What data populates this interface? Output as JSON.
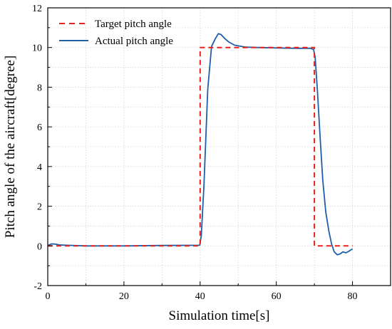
{
  "chart_data": {
    "type": "line",
    "title": "",
    "xlabel": "Simulation time[s]",
    "ylabel": "Pitch angle of the aircraft[degree]",
    "xlim": [
      0,
      90
    ],
    "ylim": [
      -2,
      12
    ],
    "xticks": [
      0,
      20,
      40,
      60,
      80
    ],
    "yticks": [
      -2,
      0,
      2,
      4,
      6,
      8,
      10,
      12
    ],
    "grid": true,
    "legend_position": "top-left",
    "series": [
      {
        "name": "Target pitch angle",
        "color": "#e8211c",
        "style": "dashed",
        "x": [
          0,
          40,
          40,
          70,
          70,
          80
        ],
        "y": [
          0,
          0,
          10,
          10,
          0,
          0
        ]
      },
      {
        "name": "Actual pitch angle",
        "color": "#1f5fa8",
        "style": "solid",
        "x": [
          0,
          1,
          2,
          3,
          5,
          10,
          20,
          30,
          39.9,
          40.3,
          41,
          42,
          43,
          44,
          44.8,
          45.5,
          46.5,
          47.5,
          49,
          52,
          55,
          60,
          65,
          69,
          69.8,
          70.2,
          70.8,
          71.5,
          72.2,
          73,
          73.8,
          74.5,
          75.2,
          76,
          76.8,
          77.5,
          78.3,
          79.2,
          80
        ],
        "y": [
          0.02,
          0.1,
          0.09,
          0.05,
          0.03,
          0.0,
          0.0,
          0.02,
          0.03,
          0.5,
          3.0,
          7.9,
          10.05,
          10.45,
          10.7,
          10.65,
          10.45,
          10.28,
          10.12,
          10.02,
          10.0,
          9.98,
          9.96,
          9.96,
          9.9,
          9.5,
          7.8,
          5.5,
          3.3,
          1.7,
          0.75,
          0.1,
          -0.3,
          -0.45,
          -0.4,
          -0.3,
          -0.35,
          -0.25,
          -0.15
        ]
      }
    ]
  }
}
